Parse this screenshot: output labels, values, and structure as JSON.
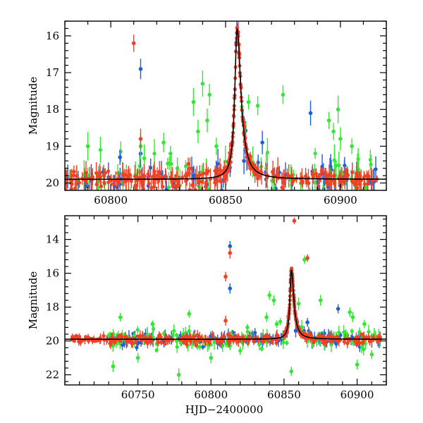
{
  "colors": {
    "blue": "#1f5fd6",
    "green": "#33e833",
    "red": "#f04025",
    "model": "#000000"
  },
  "chart_data": [
    {
      "type": "scatter",
      "xlabel": "",
      "ylabel": "Magnitude",
      "xlim": [
        60780,
        60920
      ],
      "ylim": [
        20.2,
        15.6
      ],
      "y_inverted": true,
      "xticks": [
        60800,
        60850,
        60900
      ],
      "yticks": [
        16,
        17,
        18,
        19,
        20
      ],
      "grid": false,
      "legend": "none",
      "model_peak": {
        "x": 60855,
        "y": 15.8,
        "base": 19.9
      },
      "outliers": {
        "red": [
          [
            60810,
            16.2
          ],
          [
            60813,
            18.8
          ]
        ],
        "blue": [
          [
            60813,
            16.9
          ],
          [
            60804,
            19.3
          ],
          [
            60813,
            19.2
          ],
          [
            60836,
            19.8
          ],
          [
            60858,
            19.4
          ],
          [
            60866,
            18.9
          ],
          [
            60887,
            18.1
          ]
        ],
        "green": [
          [
            60836,
            17.8
          ],
          [
            60838,
            18.6
          ],
          [
            60840,
            17.3
          ],
          [
            60842,
            18.3
          ],
          [
            60843,
            17.6
          ],
          [
            60846,
            19.0
          ],
          [
            60860,
            17.8
          ],
          [
            60864,
            17.9
          ],
          [
            60875,
            17.6
          ],
          [
            60895,
            18.3
          ],
          [
            60897,
            18.6
          ],
          [
            60899,
            18.0
          ],
          [
            60900,
            18.8
          ],
          [
            60905,
            19.0
          ],
          [
            60790,
            19.0
          ],
          [
            60813,
            19.0
          ],
          [
            60823,
            18.9
          ],
          [
            60826,
            19.2
          ],
          [
            60829,
            19.6
          ]
        ]
      }
    },
    {
      "type": "scatter",
      "xlabel": "HJD−2400000",
      "ylabel": "Magnitude",
      "xlim": [
        60700,
        60920
      ],
      "ylim": [
        22.6,
        12.6
      ],
      "y_inverted": true,
      "xticks": [
        60750,
        60800,
        60850,
        60900
      ],
      "yticks": [
        14,
        16,
        18,
        20,
        22
      ],
      "grid": false,
      "legend": "none",
      "model_peak": {
        "x": 60855,
        "y": 15.8,
        "base": 19.9
      },
      "outliers": {
        "red": [
          [
            60810,
            16.2
          ],
          [
            60813,
            14.8
          ],
          [
            60857,
            12.9
          ],
          [
            60866,
            15.1
          ],
          [
            60810,
            18.8
          ]
        ],
        "blue": [
          [
            60813,
            14.4
          ],
          [
            60813,
            16.9
          ],
          [
            60887,
            18.1
          ],
          [
            60858,
            19.4
          ],
          [
            60866,
            18.9
          ]
        ],
        "green": [
          [
            60733,
            21.5
          ],
          [
            60760,
            19.0
          ],
          [
            60778,
            22.0
          ],
          [
            60785,
            18.4
          ],
          [
            60800,
            21.0
          ],
          [
            60838,
            18.6
          ],
          [
            60840,
            17.3
          ],
          [
            60843,
            17.6
          ],
          [
            60845,
            19.0
          ],
          [
            60855,
            21.8
          ],
          [
            60860,
            17.8
          ],
          [
            60864,
            15.2
          ],
          [
            60875,
            17.6
          ],
          [
            60895,
            18.3
          ],
          [
            60897,
            18.6
          ],
          [
            60900,
            21.4
          ],
          [
            60905,
            19.0
          ],
          [
            60910,
            20.8
          ],
          [
            60738,
            18.6
          ],
          [
            60750,
            21.0
          ]
        ]
      }
    }
  ]
}
